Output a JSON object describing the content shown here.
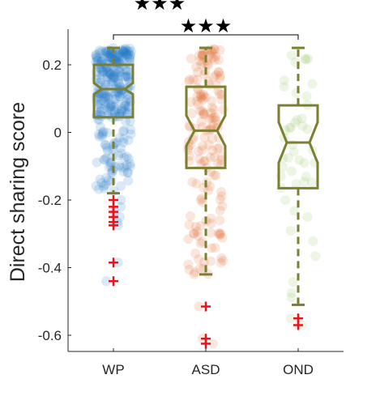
{
  "chart_data": {
    "type": "boxplot",
    "notched": true,
    "title": "",
    "xlabel": "",
    "ylabel": "Direct sharing score",
    "categories": [
      "WP",
      "ASD",
      "OND"
    ],
    "ylim": [
      -0.65,
      0.3
    ],
    "yticks": [
      0.2,
      0,
      -0.2,
      -0.4,
      -0.6
    ],
    "ytick_labels": [
      "0.2",
      "0",
      "-0.2",
      "-0.4",
      "-0.6"
    ],
    "groups": [
      {
        "name": "WP",
        "point_color": "#1f77c4",
        "n_points": 300,
        "box": {
          "whisker_low": -0.18,
          "q1": 0.045,
          "notch_low": 0.113,
          "median": 0.128,
          "notch_high": 0.146,
          "q3": 0.2,
          "whisker_high": 0.25
        },
        "outliers": [
          -0.2,
          -0.22,
          -0.235,
          -0.25,
          -0.265,
          -0.275,
          -0.385,
          -0.44
        ]
      },
      {
        "name": "ASD",
        "point_color": "#e06428",
        "n_points": 170,
        "box": {
          "whisker_low": -0.42,
          "q1": -0.105,
          "notch_low": -0.04,
          "median": 0.005,
          "notch_high": 0.05,
          "q3": 0.135,
          "whisker_high": 0.25
        },
        "outliers": [
          -0.515,
          -0.61,
          -0.625
        ]
      },
      {
        "name": "OND",
        "point_color": "#8ec060",
        "n_points": 45,
        "box": {
          "whisker_low": -0.51,
          "q1": -0.165,
          "notch_low": -0.09,
          "median": -0.03,
          "notch_high": 0.03,
          "q3": 0.08,
          "whisker_high": 0.25
        },
        "outliers": [
          -0.55,
          -0.57
        ]
      }
    ],
    "box_color": "#7a7f32",
    "outlier_color": "#e8131b",
    "significance": [
      {
        "from": "WP",
        "to": "OND",
        "label": "★★★"
      },
      {
        "from": "WP",
        "to": "ASD",
        "label": "★★★"
      }
    ]
  }
}
